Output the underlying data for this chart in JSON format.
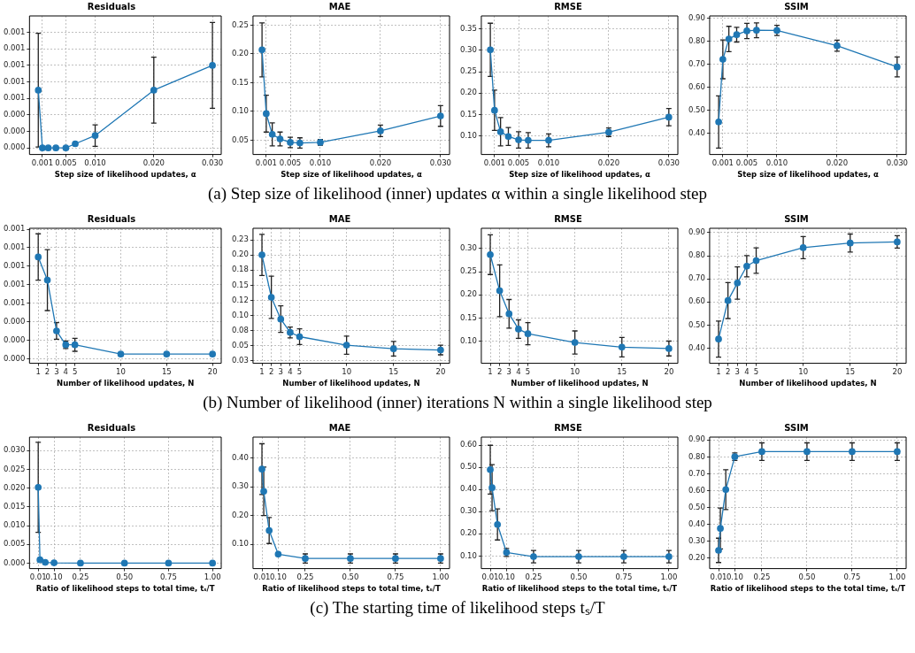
{
  "chart_data": [
    {
      "type": "line",
      "title": "Residuals",
      "xlabel": "Step size of likelihood updates, α",
      "color": "#1f77b4",
      "marker": "circle",
      "grid": true,
      "annotations": [
        "(a) Step size of likelihood (inner) updates α within a single likelihood step"
      ],
      "x": [
        0.0003,
        0.001,
        0.002,
        0.0033,
        0.005,
        0.0066,
        0.01,
        0.02,
        0.03
      ],
      "values": [
        0.0007,
        0,
        0,
        0,
        0,
        5e-05,
        0.00015,
        0.0007,
        0.001
      ],
      "errors": [
        0.00069,
        null,
        null,
        null,
        null,
        null,
        0.00013,
        0.0004,
        0.00052
      ],
      "xlim": [
        -0.0012,
        0.0315
      ],
      "xticks": [
        0.001,
        0.005,
        {
          "value": 0.01,
          "label": "0.010"
        },
        {
          "value": 0.02,
          "label": "0.020"
        },
        {
          "value": 0.03,
          "label": "0.030"
        }
      ],
      "ylim": [
        -8e-05,
        0.0016
      ],
      "yticks": [
        {
          "value": 0,
          "label": "0.000"
        },
        {
          "value": 0.0002,
          "label": "0.000"
        },
        {
          "value": 0.0004,
          "label": "0.000"
        },
        {
          "value": 0.0006,
          "label": "0.001"
        },
        {
          "value": 0.0008,
          "label": "0.001"
        },
        {
          "value": 0.001,
          "label": "0.001"
        },
        {
          "value": 0.0012,
          "label": "0.001"
        },
        {
          "value": 0.0014,
          "label": "0.001"
        }
      ]
    },
    {
      "type": "line",
      "title": "MAE",
      "xlabel": "Step size of likelihood updates, α",
      "color": "#1f77b4",
      "marker": "circle",
      "grid": true,
      "x": [
        0.0003,
        0.001,
        0.002,
        0.0033,
        0.005,
        0.0066,
        0.01,
        0.02,
        0.03
      ],
      "values": [
        0.207,
        0.096,
        0.06,
        0.052,
        0.046,
        0.045,
        0.046,
        0.066,
        0.092
      ],
      "errors": [
        0.047,
        0.032,
        0.02,
        0.012,
        0.009,
        0.009,
        0.005,
        0.01,
        0.018
      ],
      "xlim": [
        -0.0012,
        0.0315
      ],
      "xticks": [
        0.001,
        0.005,
        {
          "value": 0.01,
          "label": "0.010"
        },
        {
          "value": 0.02,
          "label": "0.020"
        },
        {
          "value": 0.03,
          "label": "0.030"
        }
      ],
      "ylim": [
        0.025,
        0.266
      ],
      "yticks": [
        0.05,
        {
          "value": 0.1,
          "label": "0.10"
        },
        0.15,
        {
          "value": 0.2,
          "label": "0.20"
        },
        0.25
      ]
    },
    {
      "type": "line",
      "title": "RMSE",
      "xlabel": "Step size of likelihood updates, α",
      "color": "#1f77b4",
      "marker": "circle",
      "grid": true,
      "x": [
        0.0003,
        0.001,
        0.002,
        0.0033,
        0.005,
        0.0066,
        0.01,
        0.02,
        0.03
      ],
      "values": [
        0.301,
        0.16,
        0.11,
        0.099,
        0.091,
        0.09,
        0.09,
        0.109,
        0.144
      ],
      "errors": [
        0.062,
        0.047,
        0.033,
        0.021,
        0.019,
        0.018,
        0.015,
        0.01,
        0.02
      ],
      "xlim": [
        -0.0012,
        0.0315
      ],
      "xticks": [
        0.001,
        0.005,
        {
          "value": 0.01,
          "label": "0.010"
        },
        {
          "value": 0.02,
          "label": "0.020"
        },
        {
          "value": 0.03,
          "label": "0.030"
        }
      ],
      "ylim": [
        0.057,
        0.38
      ],
      "yticks": [
        {
          "value": 0.1,
          "label": "0.10"
        },
        0.15,
        {
          "value": 0.2,
          "label": "0.20"
        },
        0.25,
        {
          "value": 0.3,
          "label": "0.30"
        },
        0.35
      ]
    },
    {
      "type": "line",
      "title": "SSIM",
      "xlabel": "Step size of likelihood updates, α",
      "color": "#1f77b4",
      "marker": "circle",
      "grid": true,
      "x": [
        0.0003,
        0.001,
        0.002,
        0.0033,
        0.005,
        0.0066,
        0.01,
        0.02,
        0.03
      ],
      "values": [
        0.45,
        0.721,
        0.809,
        0.828,
        0.844,
        0.847,
        0.846,
        0.78,
        0.688
      ],
      "errors": [
        0.113,
        0.084,
        0.055,
        0.032,
        0.033,
        0.032,
        0.022,
        0.024,
        0.043
      ],
      "xlim": [
        -0.0012,
        0.0315
      ],
      "xticks": [
        0.001,
        0.005,
        {
          "value": 0.01,
          "label": "0.010"
        },
        {
          "value": 0.02,
          "label": "0.020"
        },
        {
          "value": 0.03,
          "label": "0.030"
        }
      ],
      "ylim": [
        0.309,
        0.909
      ],
      "yticks": [
        {
          "value": 0.4,
          "label": "0.40"
        },
        {
          "value": 0.5,
          "label": "0.50"
        },
        {
          "value": 0.6,
          "label": "0.60"
        },
        {
          "value": 0.7,
          "label": "0.70"
        },
        {
          "value": 0.8,
          "label": "0.80"
        },
        {
          "value": 0.9,
          "label": "0.90"
        }
      ]
    },
    {
      "type": "line",
      "title": "Residuals",
      "xlabel": "Number of likelihood updates, N",
      "color": "#1f77b4",
      "marker": "circle",
      "grid": true,
      "annotations": [
        "(b) Number of likelihood (inner) iterations N within a single likelihood step"
      ],
      "x": [
        1,
        2,
        3,
        4,
        5,
        10,
        15,
        20
      ],
      "values": [
        0.0011,
        0.00085,
        0.0003,
        0.00015,
        0.00015,
        5e-05,
        5e-05,
        5e-05
      ],
      "errors": [
        0.00025,
        0.00033,
        9e-05,
        4e-05,
        7e-05,
        null,
        null,
        null
      ],
      "xlim": [
        0.05,
        20.95
      ],
      "xticks": [
        1,
        2,
        3,
        4,
        5,
        10,
        15,
        20
      ],
      "ylim": [
        -5e-05,
        0.00141
      ],
      "yticks": [
        {
          "value": 0,
          "label": "0.000"
        },
        {
          "value": 0.0002,
          "label": "0.000"
        },
        {
          "value": 0.0004,
          "label": "0.000"
        },
        {
          "value": 0.0006,
          "label": "0.001"
        },
        {
          "value": 0.0008,
          "label": "0.001"
        },
        {
          "value": 0.001,
          "label": "0.001"
        },
        {
          "value": 0.0012,
          "label": "0.001"
        },
        {
          "value": 0.0014,
          "label": "0.001"
        }
      ]
    },
    {
      "type": "line",
      "title": "MAE",
      "xlabel": "Number of likelihood updates, N",
      "color": "#1f77b4",
      "marker": "circle",
      "grid": true,
      "x": [
        1,
        2,
        3,
        4,
        5,
        10,
        15,
        20
      ],
      "values": [
        0.2,
        0.13,
        0.094,
        0.072,
        0.065,
        0.051,
        0.045,
        0.043
      ],
      "errors": [
        0.034,
        0.035,
        0.022,
        0.009,
        0.013,
        0.015,
        0.012,
        0.008
      ],
      "xlim": [
        0.05,
        20.95
      ],
      "xticks": [
        1,
        2,
        3,
        4,
        5,
        10,
        15,
        20
      ],
      "ylim": [
        0.021,
        0.244
      ],
      "yticks": [
        {
          "value": 0.025,
          "label": "0.03"
        },
        0.05,
        {
          "value": 0.075,
          "label": "0.08"
        },
        {
          "value": 0.1,
          "label": "0.10"
        },
        {
          "value": 0.125,
          "label": "0.12"
        },
        0.15,
        {
          "value": 0.175,
          "label": "0.18"
        },
        {
          "value": 0.2,
          "label": "0.20"
        },
        {
          "value": 0.225,
          "label": "0.23"
        }
      ]
    },
    {
      "type": "line",
      "title": "RMSE",
      "xlabel": "Number of likelihood updates, N",
      "color": "#1f77b4",
      "marker": "circle",
      "grid": true,
      "x": [
        1,
        2,
        3,
        4,
        5,
        10,
        15,
        20
      ],
      "values": [
        0.287,
        0.209,
        0.159,
        0.126,
        0.116,
        0.097,
        0.087,
        0.084
      ],
      "errors": [
        0.043,
        0.056,
        0.031,
        0.02,
        0.024,
        0.025,
        0.021,
        0.016
      ],
      "xlim": [
        0.05,
        20.95
      ],
      "xticks": [
        1,
        2,
        3,
        4,
        5,
        10,
        15,
        20
      ],
      "ylim": [
        0.052,
        0.344
      ],
      "yticks": [
        {
          "value": 0.1,
          "label": "0.10"
        },
        0.15,
        {
          "value": 0.2,
          "label": "0.20"
        },
        0.25,
        {
          "value": 0.3,
          "label": "0.30"
        }
      ]
    },
    {
      "type": "line",
      "title": "SSIM",
      "xlabel": "Number of likelihood updates, N",
      "color": "#1f77b4",
      "marker": "circle",
      "grid": true,
      "x": [
        1,
        2,
        3,
        4,
        5,
        10,
        15,
        20
      ],
      "values": [
        0.439,
        0.606,
        0.682,
        0.755,
        0.779,
        0.835,
        0.855,
        0.86
      ],
      "errors": [
        0.078,
        0.078,
        0.07,
        0.046,
        0.055,
        0.048,
        0.039,
        0.027
      ],
      "xlim": [
        0.05,
        20.95
      ],
      "xticks": [
        1,
        2,
        3,
        4,
        5,
        10,
        15,
        20
      ],
      "ylim": [
        0.334,
        0.919
      ],
      "yticks": [
        {
          "value": 0.4,
          "label": "0.40"
        },
        {
          "value": 0.5,
          "label": "0.50"
        },
        {
          "value": 0.6,
          "label": "0.60"
        },
        {
          "value": 0.7,
          "label": "0.70"
        },
        {
          "value": 0.8,
          "label": "0.80"
        },
        {
          "value": 0.9,
          "label": "0.90"
        }
      ]
    },
    {
      "type": "line",
      "title": "Residuals",
      "xlabel": "Ratio of likelihood steps to total time, tₛ/T",
      "color": "#1f77b4",
      "marker": "circle",
      "grid": true,
      "annotations": [
        "(c) The starting time of likelihood steps tₛ/T"
      ],
      "x": [
        0.01,
        0.02,
        0.05,
        0.1,
        0.25,
        0.5,
        0.75,
        1
      ],
      "values": [
        0.0202,
        0.0009,
        0.0002,
        0.0001,
        0,
        0,
        0,
        0
      ],
      "errors": [
        0.012,
        null,
        null,
        null,
        null,
        null,
        null,
        null
      ],
      "xlim": [
        -0.0395,
        1.0495
      ],
      "xticks": [
        0.01,
        {
          "value": 0.1,
          "label": "0.10"
        },
        0.25,
        {
          "value": 0.5,
          "label": "0.50"
        },
        0.75,
        {
          "value": 1,
          "label": "1.00"
        }
      ],
      "ylim": [
        -0.00145,
        0.0336
      ],
      "yticks": [
        {
          "value": 0,
          "label": "0.000"
        },
        0.005,
        {
          "value": 0.01,
          "label": "0.010"
        },
        0.015,
        {
          "value": 0.02,
          "label": "0.020"
        },
        0.025,
        {
          "value": 0.03,
          "label": "0.030"
        }
      ]
    },
    {
      "type": "line",
      "title": "MAE",
      "xlabel": "Ratio of likelihood steps to total time, tₛ/T",
      "color": "#1f77b4",
      "marker": "circle",
      "grid": true,
      "x": [
        0.01,
        0.02,
        0.05,
        0.1,
        0.25,
        0.5,
        0.75,
        1
      ],
      "values": [
        0.361,
        0.284,
        0.148,
        0.066,
        0.051,
        0.051,
        0.051,
        0.051
      ],
      "errors": [
        0.088,
        0.084,
        0.045,
        null,
        0.016,
        0.016,
        0.016,
        0.016
      ],
      "xlim": [
        -0.0395,
        1.0495
      ],
      "xticks": [
        0.01,
        {
          "value": 0.1,
          "label": "0.10"
        },
        0.25,
        {
          "value": 0.5,
          "label": "0.50"
        },
        0.75,
        {
          "value": 1,
          "label": "1.00"
        }
      ],
      "ylim": [
        0.016,
        0.472
      ],
      "yticks": [
        {
          "value": 0.1,
          "label": "0.10"
        },
        {
          "value": 0.2,
          "label": "0.20"
        },
        {
          "value": 0.3,
          "label": "0.30"
        },
        {
          "value": 0.4,
          "label": "0.40"
        }
      ]
    },
    {
      "type": "line",
      "title": "RMSE",
      "xlabel": "Ratio of likelihood steps to the total time, tₛ/T",
      "color": "#1f77b4",
      "marker": "circle",
      "grid": true,
      "x": [
        0.01,
        0.02,
        0.05,
        0.1,
        0.25,
        0.5,
        0.75,
        1
      ],
      "values": [
        0.489,
        0.408,
        0.242,
        0.116,
        0.097,
        0.097,
        0.097,
        0.097
      ],
      "errors": [
        0.11,
        0.104,
        0.07,
        0.018,
        0.028,
        0.028,
        0.028,
        0.028
      ],
      "xlim": [
        -0.0395,
        1.0495
      ],
      "xticks": [
        0.01,
        {
          "value": 0.1,
          "label": "0.10"
        },
        0.25,
        {
          "value": 0.5,
          "label": "0.50"
        },
        0.75,
        {
          "value": 1,
          "label": "1.00"
        }
      ],
      "ylim": [
        0.043,
        0.636
      ],
      "yticks": [
        {
          "value": 0.1,
          "label": "0.10"
        },
        {
          "value": 0.2,
          "label": "0.20"
        },
        {
          "value": 0.3,
          "label": "0.30"
        },
        {
          "value": 0.4,
          "label": "0.40"
        },
        {
          "value": 0.5,
          "label": "0.50"
        },
        {
          "value": 0.6,
          "label": "0.60"
        }
      ]
    },
    {
      "type": "line",
      "title": "SSIM",
      "xlabel": "Ratio of likelihood steps to the total time, tₛ/T",
      "color": "#1f77b4",
      "marker": "circle",
      "grid": true,
      "x": [
        0.01,
        0.02,
        0.05,
        0.1,
        0.25,
        0.5,
        0.75,
        1
      ],
      "values": [
        0.246,
        0.376,
        0.606,
        0.801,
        0.831,
        0.831,
        0.831,
        0.831
      ],
      "errors": [
        0.072,
        0.121,
        0.118,
        0.022,
        0.052,
        0.052,
        0.052,
        0.052
      ],
      "xlim": [
        -0.0395,
        1.0495
      ],
      "xticks": [
        0.01,
        {
          "value": 0.1,
          "label": "0.10"
        },
        0.25,
        {
          "value": 0.5,
          "label": "0.50"
        },
        0.75,
        {
          "value": 1,
          "label": "1.00"
        }
      ],
      "ylim": [
        0.138,
        0.917
      ],
      "yticks": [
        {
          "value": 0.2,
          "label": "0.20"
        },
        {
          "value": 0.3,
          "label": "0.30"
        },
        {
          "value": 0.4,
          "label": "0.40"
        },
        {
          "value": 0.5,
          "label": "0.50"
        },
        {
          "value": 0.6,
          "label": "0.60"
        },
        {
          "value": 0.7,
          "label": "0.70"
        },
        {
          "value": 0.8,
          "label": "0.80"
        },
        {
          "value": 0.9,
          "label": "0.90"
        }
      ]
    }
  ]
}
